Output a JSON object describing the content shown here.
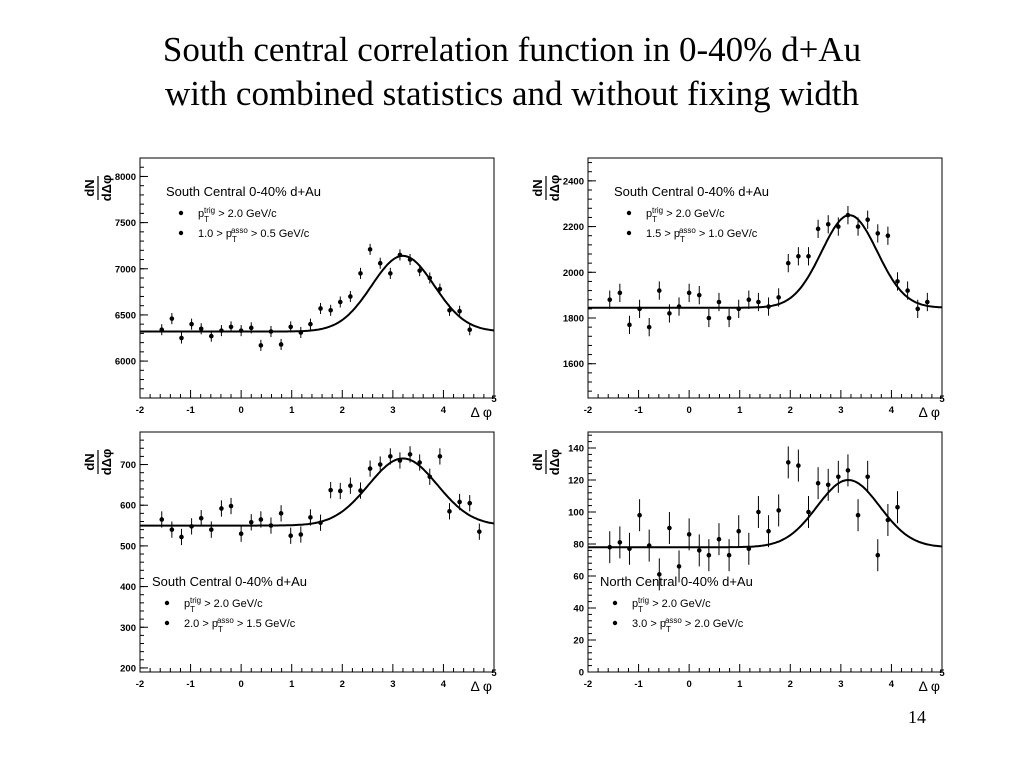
{
  "slide": {
    "title_line1": "South central correlation function in 0-40% d+Au",
    "title_line2": "with combined statistics and without fixing width",
    "page_number": "14"
  },
  "chart_data": [
    {
      "type": "scatter",
      "panel": "top-left",
      "legend": {
        "title": "South Central 0-40% d+Au",
        "trig_prefix": "p",
        "trig_sub": "T",
        "trig_sup": "trig",
        "trig_suffix": " > 2.0 GeV/c",
        "asso_prefix": "1.0 > p",
        "asso_sub": "T",
        "asso_sup": "asso",
        "asso_suffix": " > 0.5 GeV/c",
        "placement": "top-left"
      },
      "ylabel_num": "dN",
      "ylabel_den": "dΔφ",
      "xlabel": "Δ φ",
      "xlim": [
        -2,
        5
      ],
      "ylim": [
        5600,
        8200
      ],
      "xticks": [
        -2,
        -1,
        0,
        1,
        2,
        3,
        4,
        5
      ],
      "yticks": [
        6000,
        6500,
        7000,
        7500,
        8000
      ],
      "yticks_text": [
        "6000",
        "6500",
        "7000",
        "7500",
        "8000"
      ],
      "points": [
        [
          -1.57,
          6340,
          60
        ],
        [
          -1.37,
          6460,
          60
        ],
        [
          -1.18,
          6250,
          60
        ],
        [
          -0.98,
          6400,
          60
        ],
        [
          -0.79,
          6350,
          60
        ],
        [
          -0.59,
          6270,
          60
        ],
        [
          -0.39,
          6330,
          60
        ],
        [
          -0.2,
          6370,
          60
        ],
        [
          0,
          6330,
          60
        ],
        [
          0.2,
          6360,
          60
        ],
        [
          0.39,
          6170,
          60
        ],
        [
          0.59,
          6320,
          60
        ],
        [
          0.79,
          6180,
          60
        ],
        [
          0.98,
          6370,
          60
        ],
        [
          1.18,
          6310,
          60
        ],
        [
          1.37,
          6400,
          60
        ],
        [
          1.57,
          6570,
          60
        ],
        [
          1.77,
          6550,
          60
        ],
        [
          1.96,
          6640,
          60
        ],
        [
          2.16,
          6700,
          60
        ],
        [
          2.36,
          6950,
          60
        ],
        [
          2.55,
          7210,
          60
        ],
        [
          2.75,
          7060,
          60
        ],
        [
          2.95,
          6950,
          60
        ],
        [
          3.14,
          7150,
          60
        ],
        [
          3.34,
          7100,
          60
        ],
        [
          3.53,
          6980,
          60
        ],
        [
          3.73,
          6900,
          60
        ],
        [
          3.93,
          6780,
          60
        ],
        [
          4.12,
          6550,
          60
        ],
        [
          4.32,
          6540,
          60
        ],
        [
          4.52,
          6340,
          60
        ]
      ],
      "fit": {
        "baseline": 6320,
        "amplitude": 820,
        "mean": 3.2,
        "sigma": 0.62
      }
    },
    {
      "type": "scatter",
      "panel": "top-right",
      "legend": {
        "title": "South Central 0-40% d+Au",
        "trig_prefix": "p",
        "trig_sub": "T",
        "trig_sup": "trig",
        "trig_suffix": " > 2.0 GeV/c",
        "asso_prefix": "1.5 > p",
        "asso_sub": "T",
        "asso_sup": "asso",
        "asso_suffix": " > 1.0 GeV/c",
        "placement": "top-left"
      },
      "ylabel_num": "dN",
      "ylabel_den": "dΔφ",
      "xlabel": "Δ φ",
      "xlim": [
        -2,
        5
      ],
      "ylim": [
        1450,
        2500
      ],
      "xticks": [
        -2,
        -1,
        0,
        1,
        2,
        3,
        4,
        5
      ],
      "yticks": [
        1600,
        1800,
        2000,
        2200,
        2400
      ],
      "yticks_text": [
        "1600",
        "1800",
        "2000",
        "2200",
        "2400"
      ],
      "points": [
        [
          -1.57,
          1880,
          40
        ],
        [
          -1.37,
          1910,
          40
        ],
        [
          -1.18,
          1770,
          40
        ],
        [
          -0.98,
          1840,
          40
        ],
        [
          -0.79,
          1760,
          40
        ],
        [
          -0.59,
          1920,
          40
        ],
        [
          -0.39,
          1820,
          40
        ],
        [
          -0.2,
          1850,
          40
        ],
        [
          0,
          1910,
          40
        ],
        [
          0.2,
          1900,
          40
        ],
        [
          0.39,
          1800,
          40
        ],
        [
          0.59,
          1870,
          40
        ],
        [
          0.79,
          1800,
          40
        ],
        [
          0.98,
          1840,
          40
        ],
        [
          1.18,
          1880,
          40
        ],
        [
          1.37,
          1870,
          40
        ],
        [
          1.57,
          1850,
          40
        ],
        [
          1.77,
          1890,
          40
        ],
        [
          1.96,
          2040,
          40
        ],
        [
          2.16,
          2070,
          40
        ],
        [
          2.36,
          2070,
          40
        ],
        [
          2.55,
          2190,
          40
        ],
        [
          2.75,
          2210,
          40
        ],
        [
          2.95,
          2200,
          40
        ],
        [
          3.14,
          2250,
          40
        ],
        [
          3.34,
          2200,
          40
        ],
        [
          3.53,
          2230,
          40
        ],
        [
          3.73,
          2170,
          40
        ],
        [
          3.93,
          2160,
          40
        ],
        [
          4.12,
          1960,
          40
        ],
        [
          4.32,
          1920,
          40
        ],
        [
          4.52,
          1840,
          40
        ],
        [
          4.71,
          1870,
          40
        ]
      ],
      "fit": {
        "baseline": 1845,
        "amplitude": 405,
        "mean": 3.17,
        "sigma": 0.55
      }
    },
    {
      "type": "scatter",
      "panel": "bottom-left",
      "legend": {
        "title": "South Central 0-40% d+Au",
        "trig_prefix": "p",
        "trig_sub": "T",
        "trig_sup": "trig",
        "trig_suffix": " > 2.0 GeV/c",
        "asso_prefix": "2.0 > p",
        "asso_sub": "T",
        "asso_sup": "asso",
        "asso_suffix": " > 1.5 GeV/c",
        "placement": "bottom-left"
      },
      "ylabel_num": "dN",
      "ylabel_den": "dΔφ",
      "xlabel": "Δ φ",
      "xlim": [
        -2,
        5
      ],
      "ylim": [
        190,
        780
      ],
      "xticks": [
        -2,
        -1,
        0,
        1,
        2,
        3,
        4,
        5
      ],
      "yticks": [
        200,
        300,
        400,
        500,
        600,
        700
      ],
      "yticks_text": [
        "200",
        "300",
        "400",
        "500",
        "600",
        "700"
      ],
      "points": [
        [
          -1.57,
          565,
          20
        ],
        [
          -1.37,
          540,
          20
        ],
        [
          -1.18,
          522,
          20
        ],
        [
          -0.98,
          548,
          20
        ],
        [
          -0.79,
          568,
          20
        ],
        [
          -0.59,
          540,
          20
        ],
        [
          -0.39,
          592,
          20
        ],
        [
          -0.2,
          598,
          20
        ],
        [
          0,
          530,
          20
        ],
        [
          0.2,
          558,
          20
        ],
        [
          0.39,
          565,
          20
        ],
        [
          0.59,
          550,
          20
        ],
        [
          0.79,
          580,
          20
        ],
        [
          0.98,
          525,
          20
        ],
        [
          1.18,
          528,
          20
        ],
        [
          1.37,
          570,
          20
        ],
        [
          1.57,
          557,
          20
        ],
        [
          1.77,
          637,
          20
        ],
        [
          1.96,
          635,
          20
        ],
        [
          2.16,
          648,
          20
        ],
        [
          2.36,
          636,
          20
        ],
        [
          2.55,
          690,
          20
        ],
        [
          2.75,
          700,
          20
        ],
        [
          2.95,
          720,
          20
        ],
        [
          3.14,
          710,
          20
        ],
        [
          3.34,
          725,
          20
        ],
        [
          3.53,
          705,
          20
        ],
        [
          3.73,
          670,
          20
        ],
        [
          3.93,
          720,
          20
        ],
        [
          4.12,
          585,
          20
        ],
        [
          4.32,
          608,
          20
        ],
        [
          4.52,
          605,
          20
        ],
        [
          4.71,
          535,
          20
        ]
      ],
      "fit": {
        "baseline": 550,
        "amplitude": 165,
        "mean": 3.2,
        "sigma": 0.68
      }
    },
    {
      "type": "scatter",
      "panel": "bottom-right",
      "legend": {
        "title": "North Central 0-40% d+Au",
        "trig_prefix": "p",
        "trig_sub": "T",
        "trig_sup": "trig",
        "trig_suffix": " > 2.0 GeV/c",
        "asso_prefix": "3.0 > p",
        "asso_sub": "T",
        "asso_sup": "asso",
        "asso_suffix": " > 2.0 GeV/c",
        "placement": "bottom-left"
      },
      "ylabel_num": "dN",
      "ylabel_den": "dΔφ",
      "xlabel": "Δ φ",
      "xlim": [
        -2,
        5
      ],
      "ylim": [
        0,
        150
      ],
      "xticks": [
        -2,
        -1,
        0,
        1,
        2,
        3,
        4,
        5
      ],
      "yticks": [
        0,
        20,
        40,
        60,
        80,
        100,
        120,
        140
      ],
      "yticks_text": [
        "0",
        "20",
        "40",
        "60",
        "80",
        "100",
        "120",
        "140"
      ],
      "points": [
        [
          -1.57,
          78,
          10
        ],
        [
          -1.37,
          81,
          10
        ],
        [
          -1.18,
          77,
          10
        ],
        [
          -0.98,
          98,
          10
        ],
        [
          -0.79,
          79,
          10
        ],
        [
          -0.59,
          61,
          10
        ],
        [
          -0.39,
          90,
          10
        ],
        [
          -0.2,
          66,
          10
        ],
        [
          0,
          86,
          10
        ],
        [
          0.2,
          76,
          10
        ],
        [
          0.39,
          73,
          10
        ],
        [
          0.59,
          83,
          10
        ],
        [
          0.79,
          73,
          10
        ],
        [
          0.98,
          88,
          10
        ],
        [
          1.18,
          77,
          10
        ],
        [
          1.37,
          100,
          10
        ],
        [
          1.57,
          88,
          10
        ],
        [
          1.77,
          101,
          10
        ],
        [
          1.96,
          131,
          10
        ],
        [
          2.16,
          129,
          10
        ],
        [
          2.36,
          100,
          10
        ],
        [
          2.55,
          118,
          10
        ],
        [
          2.75,
          117,
          10
        ],
        [
          2.95,
          122,
          10
        ],
        [
          3.14,
          126,
          10
        ],
        [
          3.34,
          98,
          10
        ],
        [
          3.53,
          122,
          10
        ],
        [
          3.73,
          73,
          10
        ],
        [
          3.93,
          95,
          10
        ],
        [
          4.12,
          103,
          10
        ]
      ],
      "fit": {
        "baseline": 78,
        "amplitude": 42,
        "mean": 3.15,
        "sigma": 0.62
      }
    }
  ]
}
